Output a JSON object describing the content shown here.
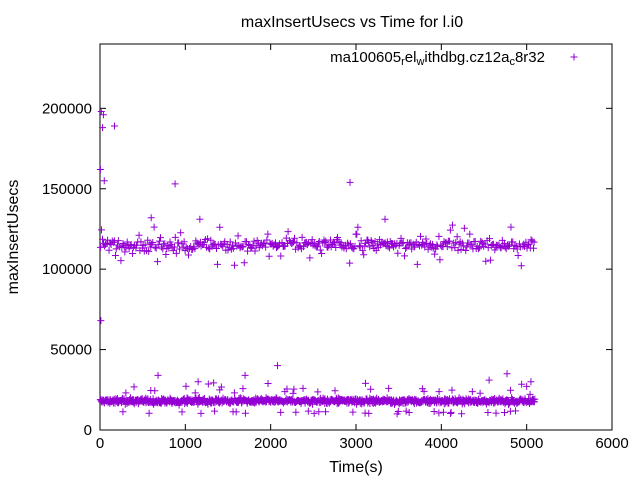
{
  "chart_data": {
    "type": "scatter",
    "title": "maxInsertUsecs vs Time for l.i0",
    "xlabel": "Time(s)",
    "ylabel": "maxInsertUsecs",
    "xlim": [
      0,
      6000
    ],
    "ylim": [
      0,
      240000
    ],
    "x_ticks": [
      0,
      1000,
      2000,
      3000,
      4000,
      5000,
      6000
    ],
    "y_ticks": [
      0,
      50000,
      100000,
      150000,
      200000
    ],
    "x_tick_labels": [
      "0",
      "1000",
      "2000",
      "3000",
      "4000",
      "5000",
      "6000"
    ],
    "y_tick_labels": [
      "0",
      "50000",
      "100000",
      "150000",
      "200000"
    ],
    "grid": false,
    "legend_position": "top-right",
    "legend_text": {
      "parts": [
        {
          "text": "ma100605",
          "shift": "none"
        },
        {
          "text": "r",
          "shift": "sub"
        },
        {
          "text": "el",
          "shift": "none"
        },
        {
          "text": "w",
          "shift": "sub"
        },
        {
          "text": "ithdbg.cz12a",
          "shift": "none"
        },
        {
          "text": "c",
          "shift": "sub"
        },
        {
          "text": "8r32",
          "shift": "none"
        }
      ]
    },
    "series_color": "#9400d3",
    "marker": "+",
    "series": [
      {
        "name": "ma100605_rel_withdbg.cz12a_c8r32",
        "points_x_range": [
          0,
          5100
        ],
        "bands": [
          {
            "y_center": 18000,
            "spread": 3000
          },
          {
            "y_center": 115000,
            "spread": 6000
          }
        ],
        "outliers": [
          [
            5,
            162000
          ],
          [
            10,
            68000
          ],
          [
            15,
            198000
          ],
          [
            30,
            188000
          ],
          [
            40,
            196000
          ],
          [
            50,
            155000
          ],
          [
            170,
            189000
          ],
          [
            880,
            153000
          ],
          [
            2930,
            154000
          ],
          [
            600,
            132000
          ],
          [
            1170,
            131000
          ],
          [
            3340,
            131000
          ],
          [
            2080,
            40000
          ],
          [
            1700,
            34000
          ],
          [
            4770,
            35000
          ],
          [
            680,
            34000
          ],
          [
            1020,
            20000
          ],
          [
            1150,
            30000
          ],
          [
            4560,
            31000
          ],
          [
            5050,
            30000
          ]
        ]
      }
    ]
  }
}
